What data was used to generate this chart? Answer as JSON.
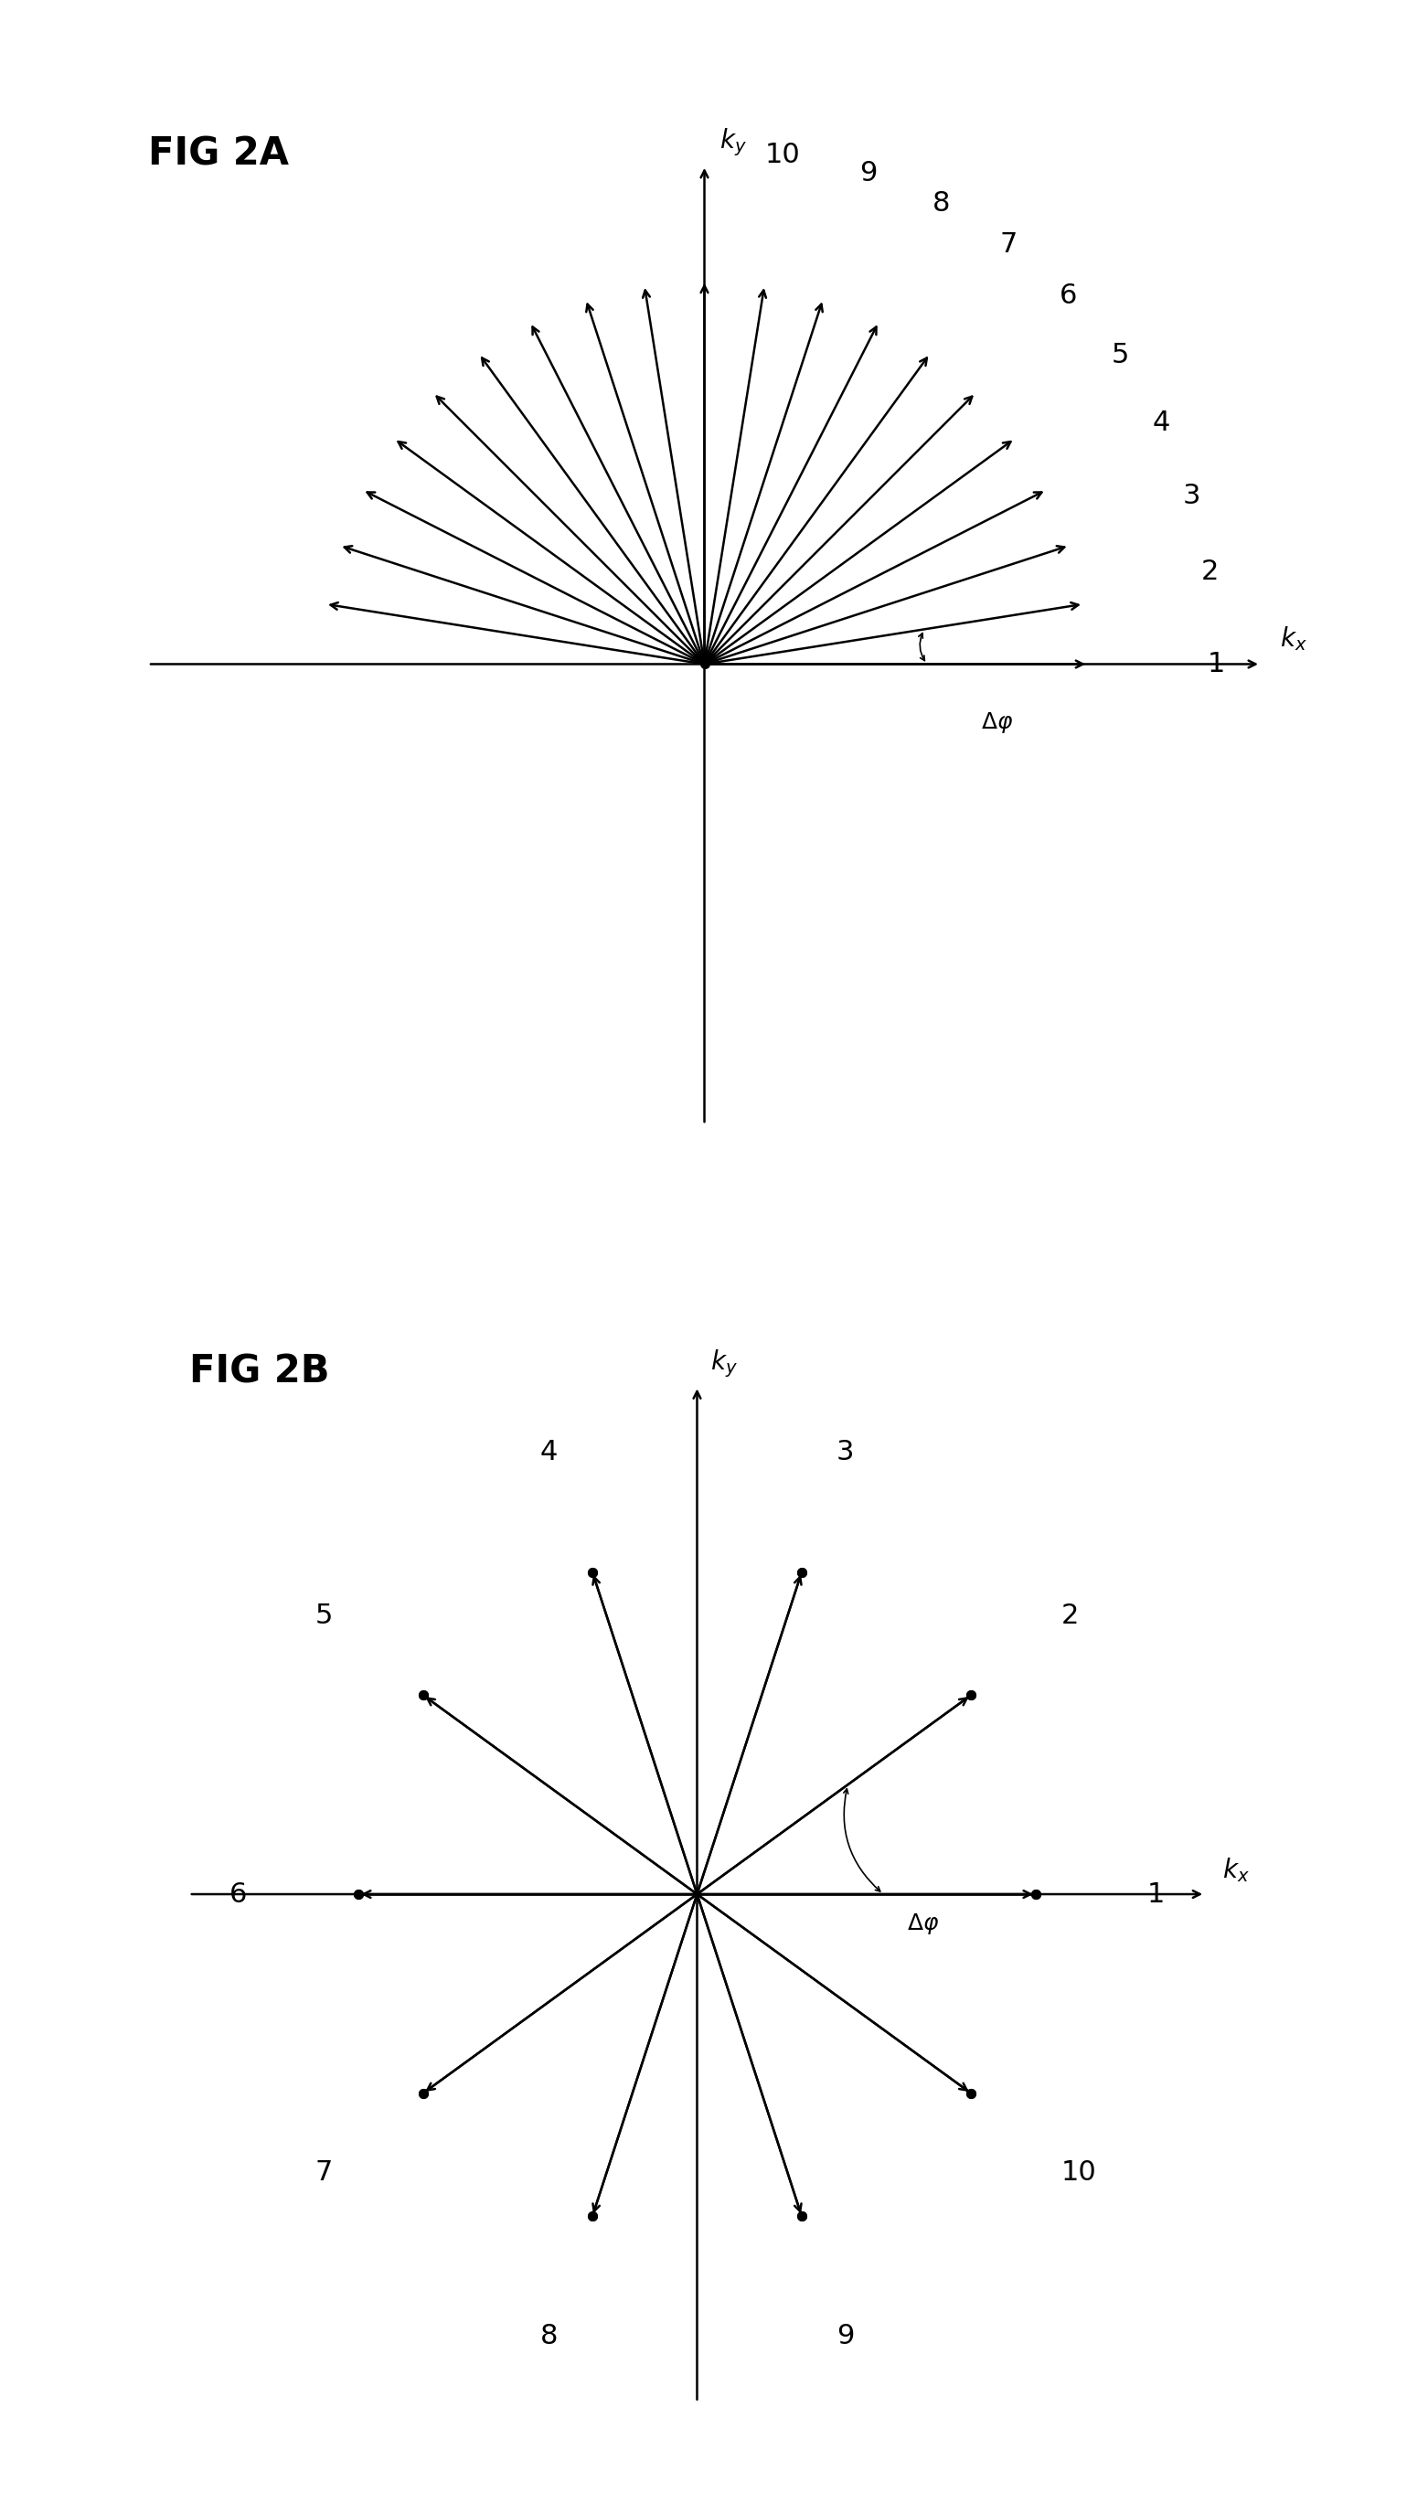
{
  "background_color": "#ffffff",
  "fig2a_label": "FIG 2A",
  "fig2b_label": "FIG 2B",
  "fig2a_n_spokes": 20,
  "fig2a_delta_phi_deg": 9.0,
  "fig2b_n_spokes": 10,
  "fig2b_delta_phi_deg": 36.0,
  "label_fontsize": 22,
  "fig_label_fontsize": 30,
  "axis_label_fontsize": 20,
  "delta_phi_fontsize": 18,
  "line_width": 1.8,
  "dot_size": 7,
  "arrow_mutation_scale": 14
}
